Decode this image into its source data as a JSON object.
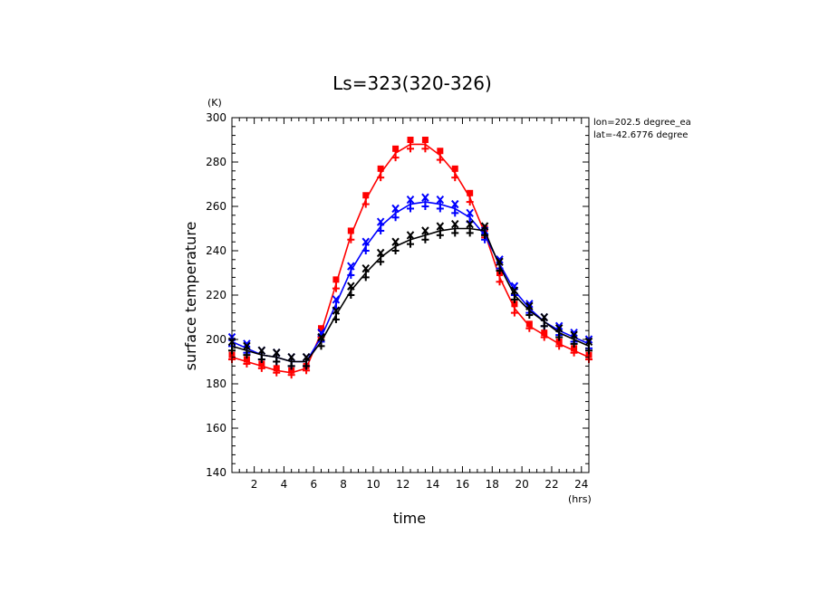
{
  "chart_data": {
    "type": "line",
    "title": "Ls=323(320-326)",
    "xlabel": "time",
    "ylabel": "surface temperature",
    "x_unit": "(hrs)",
    "y_unit": "(K)",
    "xlim": [
      0.5,
      24.5
    ],
    "ylim": [
      140,
      300
    ],
    "xticks": [
      2,
      4,
      6,
      8,
      10,
      12,
      14,
      16,
      18,
      20,
      22,
      24
    ],
    "yticks": [
      140,
      160,
      180,
      200,
      220,
      240,
      260,
      280,
      300
    ],
    "annotations": [
      "lon=202.5 degree_ea",
      "lat=-42.6776 degree"
    ],
    "x": [
      0.5,
      1.5,
      2.5,
      3.5,
      4.5,
      5.5,
      6.5,
      7.5,
      8.5,
      9.5,
      10.5,
      11.5,
      12.5,
      13.5,
      14.5,
      15.5,
      16.5,
      17.5,
      18.5,
      19.5,
      20.5,
      21.5,
      22.5,
      23.5,
      24.5
    ],
    "series": [
      {
        "color": "#ff0000",
        "marker_top": "square",
        "values": [
          192,
          190,
          188,
          186,
          185,
          187,
          203,
          225,
          247,
          263,
          275,
          284,
          288,
          288,
          283,
          275,
          264,
          248,
          228,
          214,
          206,
          202,
          198,
          195,
          192
        ],
        "err": [
          1,
          1,
          1,
          1,
          1,
          1,
          2,
          2,
          2,
          2,
          2,
          2,
          2,
          2,
          2,
          2,
          2,
          2,
          2,
          2,
          1,
          1,
          1,
          1,
          1
        ]
      },
      {
        "color": "#0000ff",
        "marker_top": "x",
        "values": [
          199,
          196,
          193,
          192,
          190,
          190,
          201,
          216,
          231,
          242,
          251,
          257,
          261,
          262,
          261,
          259,
          255,
          247,
          234,
          222,
          214,
          208,
          204,
          201,
          198
        ],
        "err": [
          2,
          2,
          2,
          2,
          2,
          2,
          2,
          2,
          2,
          2,
          2,
          2,
          2,
          2,
          2,
          2,
          2,
          2,
          2,
          2,
          2,
          2,
          2,
          2,
          2
        ]
      },
      {
        "color": "#000000",
        "marker_top": "x",
        "values": [
          197,
          195,
          193,
          192,
          190,
          190,
          199,
          211,
          222,
          230,
          237,
          242,
          245,
          247,
          249,
          250,
          250,
          249,
          233,
          220,
          213,
          208,
          203,
          200,
          197
        ],
        "err": [
          2,
          2,
          2,
          2,
          2,
          2,
          2,
          2,
          2,
          2,
          2,
          2,
          2,
          2,
          2,
          2,
          2,
          2,
          2,
          2,
          2,
          2,
          2,
          2,
          2
        ]
      }
    ]
  }
}
